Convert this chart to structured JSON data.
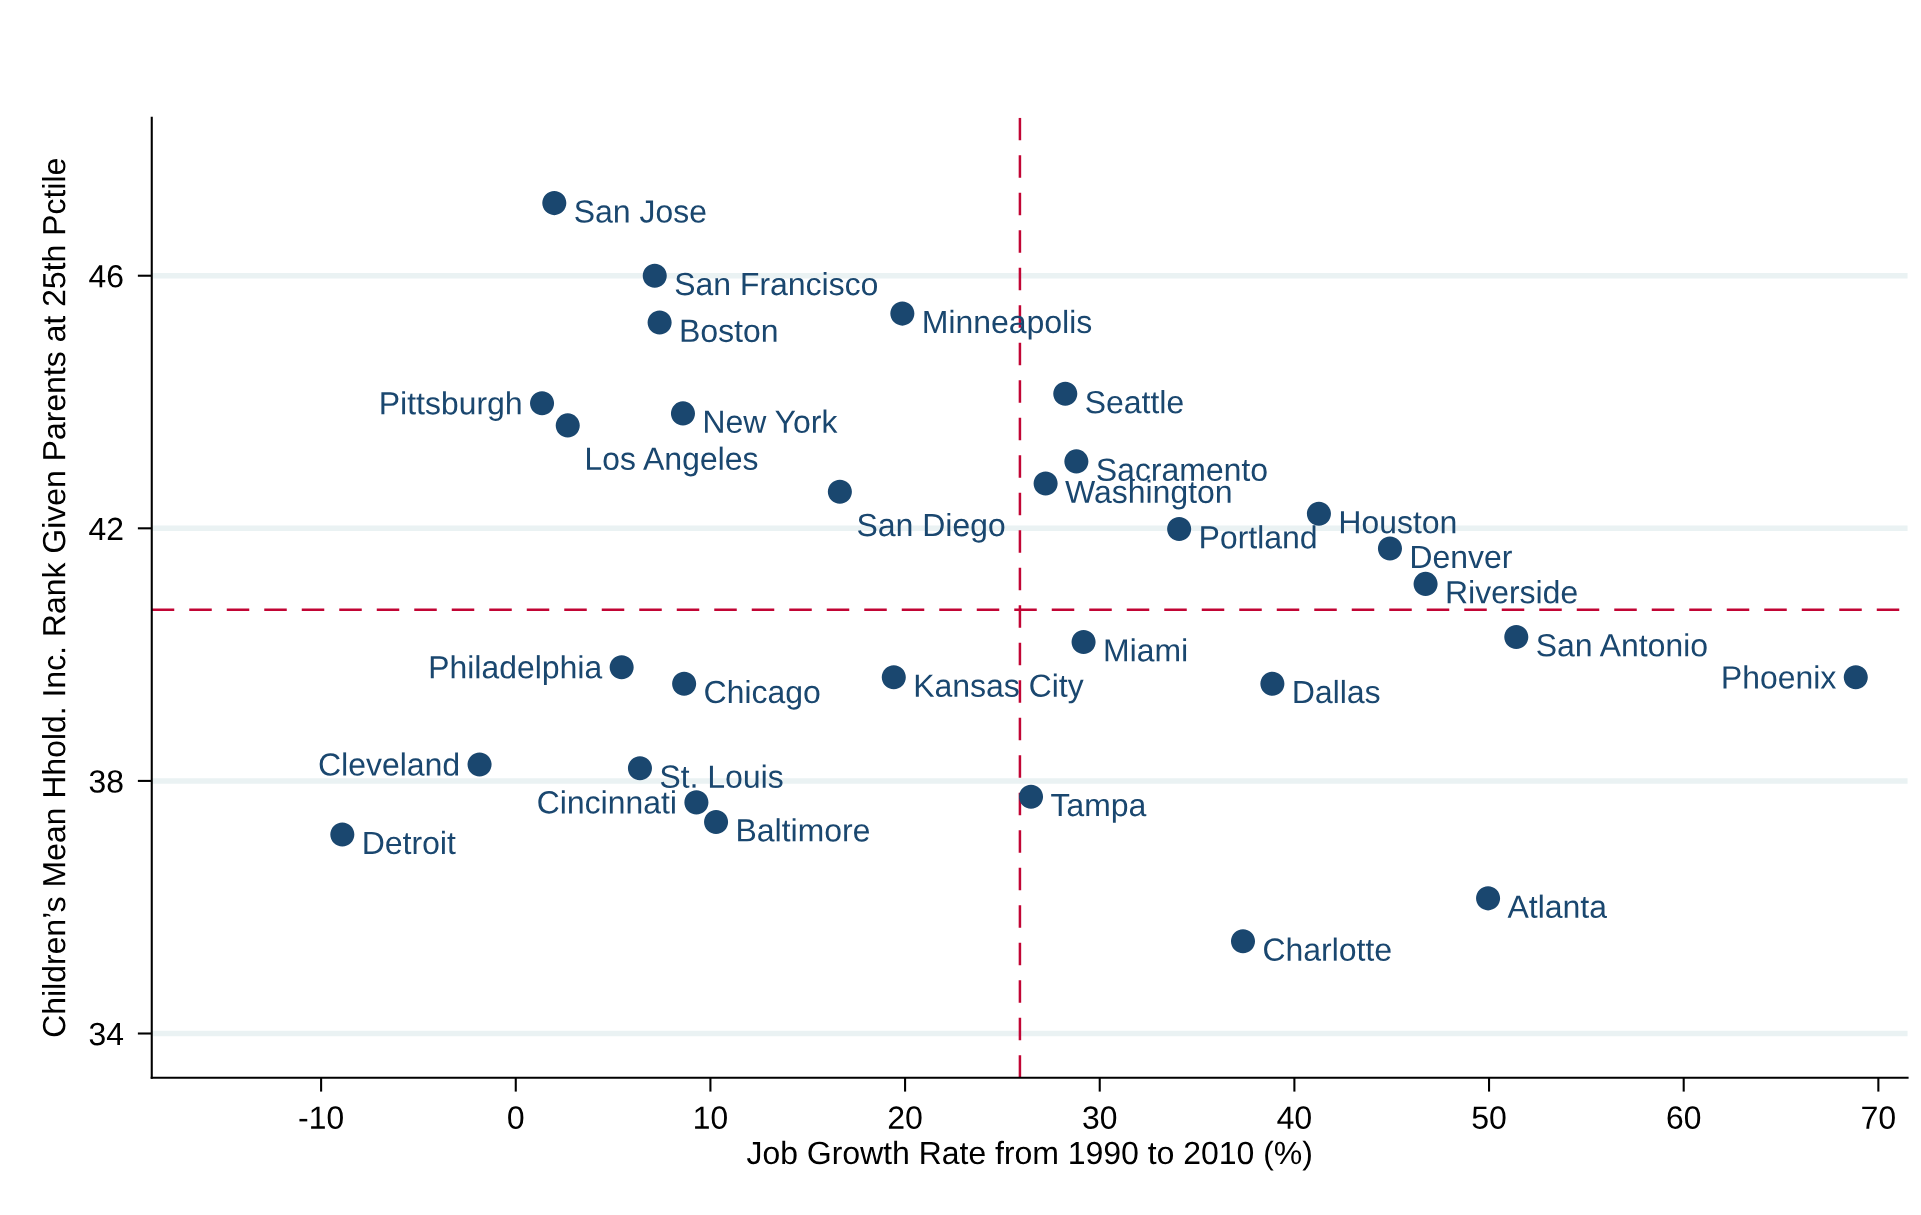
{
  "chart_data": {
    "type": "scatter",
    "xlabel": "Job Growth Rate from 1990 to 2010 (%)",
    "ylabel": "Children’s Mean Hhold. Inc. Rank Given Parents at 25th Pctile",
    "xlim": [
      -18.7,
      71.5
    ],
    "xticks": [
      -10,
      0,
      10,
      20,
      30,
      40,
      50,
      60,
      70
    ],
    "ylim": [
      33.3,
      48.5
    ],
    "yticks": [
      34,
      38,
      42,
      46
    ],
    "grid": "y",
    "marker": "circle",
    "series": [
      {
        "color": "#1a476f",
        "x": [
          1.98,
          7.14,
          7.39,
          19.86,
          1.35,
          8.59,
          2.67,
          16.65,
          28.23,
          28.8,
          27.22,
          34.08,
          41.26,
          44.91,
          46.74,
          51.4,
          68.84,
          29.17,
          38.87,
          19.42,
          8.65,
          5.44,
          -1.86,
          6.38,
          9.28,
          10.29,
          -8.91,
          26.47,
          49.95,
          37.36
        ],
        "values": [
          47.15,
          46.0,
          45.26,
          45.4,
          43.98,
          43.82,
          43.63,
          42.58,
          44.13,
          43.06,
          42.71,
          41.99,
          42.23,
          41.68,
          41.12,
          40.28,
          39.64,
          40.2,
          39.54,
          39.64,
          39.54,
          39.8,
          38.26,
          38.2,
          37.66,
          37.35,
          37.15,
          37.75,
          36.14,
          35.46
        ]
      }
    ],
    "ref_lines": [
      {
        "axis": "x",
        "value": 25.9,
        "color": "#c10534",
        "line_style": "dashed"
      },
      {
        "axis": "y",
        "value": 40.71,
        "color": "#c10534",
        "line_style": "dashed"
      }
    ],
    "annotations": [
      {
        "text": "San Jose",
        "x": 1.98,
        "y": 47.15
      },
      {
        "text": "San Francisco",
        "x": 7.14,
        "y": 46.0
      },
      {
        "text": "Boston",
        "x": 7.39,
        "y": 45.26
      },
      {
        "text": "Minneapolis",
        "x": 19.86,
        "y": 45.4
      },
      {
        "text": "Pittsburgh",
        "x": 1.35,
        "y": 43.98
      },
      {
        "text": "New York",
        "x": 8.59,
        "y": 43.82
      },
      {
        "text": "Los Angeles",
        "x": 2.67,
        "y": 43.63
      },
      {
        "text": "San Diego",
        "x": 16.65,
        "y": 42.58
      },
      {
        "text": "Seattle",
        "x": 28.23,
        "y": 44.13
      },
      {
        "text": "Sacramento",
        "x": 28.8,
        "y": 43.06
      },
      {
        "text": "Washington",
        "x": 27.22,
        "y": 42.71
      },
      {
        "text": "Portland",
        "x": 34.08,
        "y": 41.99
      },
      {
        "text": "Houston",
        "x": 41.26,
        "y": 42.23
      },
      {
        "text": "Denver",
        "x": 44.91,
        "y": 41.68
      },
      {
        "text": "Riverside",
        "x": 46.74,
        "y": 41.12
      },
      {
        "text": "San Antonio",
        "x": 51.4,
        "y": 40.28
      },
      {
        "text": "Phoenix",
        "x": 68.84,
        "y": 39.64
      },
      {
        "text": "Miami",
        "x": 29.17,
        "y": 40.2
      },
      {
        "text": "Dallas",
        "x": 38.87,
        "y": 39.54
      },
      {
        "text": "Kansas City",
        "x": 19.42,
        "y": 39.64
      },
      {
        "text": "Chicago",
        "x": 8.65,
        "y": 39.54
      },
      {
        "text": "Philadelphia",
        "x": 5.44,
        "y": 39.8
      },
      {
        "text": "Cleveland",
        "x": -1.86,
        "y": 38.26
      },
      {
        "text": "St. Louis",
        "x": 6.38,
        "y": 38.2
      },
      {
        "text": "Cincinnati",
        "x": 9.28,
        "y": 37.66
      },
      {
        "text": "Baltimore",
        "x": 10.29,
        "y": 37.35
      },
      {
        "text": "Detroit",
        "x": -8.91,
        "y": 37.15
      },
      {
        "text": "Tampa",
        "x": 26.47,
        "y": 37.75
      },
      {
        "text": "Atlanta",
        "x": 49.95,
        "y": 36.14
      },
      {
        "text": "Charlotte",
        "x": 37.36,
        "y": 35.46
      }
    ]
  }
}
